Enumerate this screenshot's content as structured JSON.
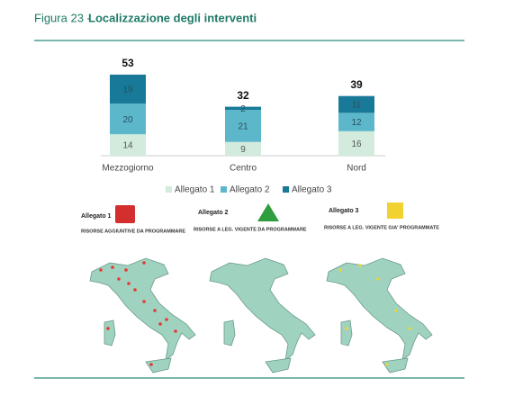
{
  "figure_number": "Figura 23 -",
  "chart_data": {
    "type": "stacked_bar",
    "title": "Localizzazione degli interventi",
    "categories": [
      "Mezzogiorno",
      "Centro",
      "Nord"
    ],
    "series": [
      {
        "name": "Allegato 1",
        "color": "#d3ebdc",
        "values": [
          14,
          9,
          16
        ]
      },
      {
        "name": "Allegato 2",
        "color": "#5cb7cb",
        "values": [
          20,
          21,
          12
        ]
      },
      {
        "name": "Allegato 3",
        "color": "#187a98",
        "values": [
          19,
          2,
          11
        ]
      }
    ],
    "totals": [
      53,
      32,
      39
    ]
  },
  "panels": [
    {
      "label": "Allegato 1",
      "caption": "RISORSE AGGIUNTIVE DA PROGRAMMARE"
    },
    {
      "label": "Allegato 2",
      "caption": "RISORSE A LEG. VIGENTE DA PROGRAMMARE"
    },
    {
      "label": "Allegato 3",
      "caption": "RISORSE A LEG. VIGENTE GIA' PROGRAMMATE"
    }
  ]
}
